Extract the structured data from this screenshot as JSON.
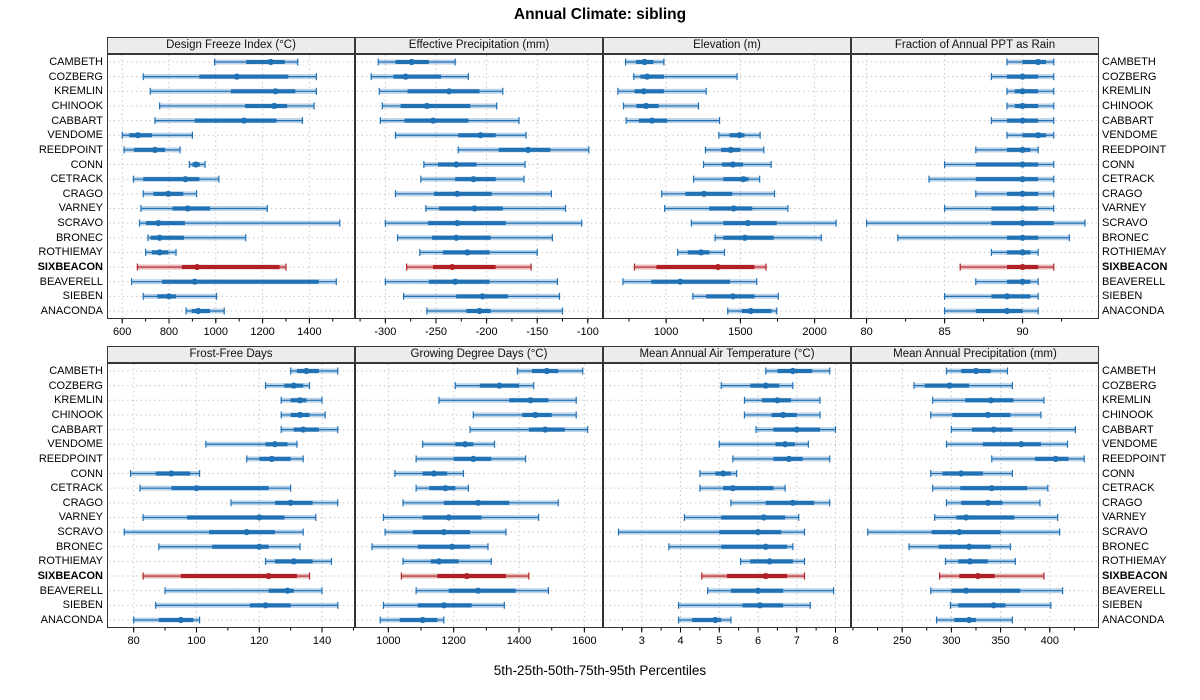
{
  "figure": {
    "title": "Annual Climate: sibling",
    "caption": "5th-25th-50th-75th-95th Percentiles"
  },
  "stations": [
    "CAMBETH",
    "COZBERG",
    "KREMLIN",
    "CHINOOK",
    "CABBART",
    "VENDOME",
    "REEDPOINT",
    "CONN",
    "CETRACK",
    "CRAGO",
    "VARNEY",
    "SCRAVO",
    "BRONEC",
    "ROTHIEMAY",
    "SIXBEACON",
    "BEAVERELL",
    "SIEBEN",
    "ANACONDA"
  ],
  "highlight_station": "SIXBEACON",
  "colors": {
    "series": "#2171b5",
    "highlight": "#b02126",
    "grid": "#c9c9c9",
    "strip_bg": "#ececec",
    "border": "#333333"
  },
  "chart_data": [
    {
      "type": "percentile-dotplot",
      "title": "Design Freeze Index (°C)",
      "percentiles": [
        "5th",
        "25th",
        "50th",
        "75th",
        "95th"
      ],
      "xlim": [
        535,
        1595
      ],
      "ticks": [
        600,
        800,
        1000,
        1200,
        1400
      ],
      "minor_step": 100,
      "values": {
        "CAMBETH": [
          995,
          1130,
          1235,
          1295,
          1350
        ],
        "COZBERG": [
          690,
          930,
          1090,
          1310,
          1430
        ],
        "KREMLIN": [
          720,
          1065,
          1255,
          1340,
          1430
        ],
        "CHINOOK": [
          760,
          1125,
          1250,
          1305,
          1420
        ],
        "CABBART": [
          740,
          910,
          1120,
          1260,
          1370
        ],
        "VENDOME": [
          600,
          630,
          667,
          727,
          900
        ],
        "REEDPOINT": [
          608,
          650,
          740,
          783,
          847
        ],
        "CONN": [
          887,
          900,
          915,
          932,
          954
        ],
        "CETRACK": [
          648,
          690,
          870,
          930,
          1013
        ],
        "CRAGO": [
          690,
          733,
          797,
          861,
          918
        ],
        "VARNEY": [
          680,
          815,
          880,
          975,
          1220
        ],
        "SCRAVO": [
          674,
          702,
          755,
          868,
          1530
        ],
        "BRONEC": [
          710,
          722,
          760,
          864,
          1128
        ],
        "ROTHIEMAY": [
          700,
          727,
          760,
          797,
          830
        ],
        "SIXBEACON": [
          665,
          855,
          920,
          1273,
          1300
        ],
        "BEAVERELL": [
          640,
          770,
          910,
          1440,
          1515
        ],
        "SIEBEN": [
          690,
          750,
          800,
          830,
          1003
        ],
        "ANACONDA": [
          873,
          897,
          925,
          975,
          1036
        ]
      }
    },
    {
      "type": "percentile-dotplot",
      "title": "Effective Precipitation (mm)",
      "percentiles": [
        "5th",
        "25th",
        "50th",
        "75th",
        "95th"
      ],
      "xlim": [
        -330,
        -85
      ],
      "ticks": [
        -300,
        -250,
        -200,
        -150,
        -100
      ],
      "minor_step": 25,
      "values": {
        "CAMBETH": [
          -307,
          -290,
          -274,
          -257,
          -231
        ],
        "COZBERG": [
          -314,
          -292,
          -280,
          -245,
          -218
        ],
        "KREMLIN": [
          -306,
          -278,
          -237,
          -207,
          -184
        ],
        "CHINOOK": [
          -303,
          -285,
          -259,
          -216,
          -190
        ],
        "CABBART": [
          -305,
          -281,
          -253,
          -218,
          -168
        ],
        "VENDOME": [
          -290,
          -228,
          -206,
          -191,
          -161
        ],
        "REEDPOINT": [
          -228,
          -188,
          -159,
          -137,
          -99
        ],
        "CONN": [
          -262,
          -248,
          -230,
          -210,
          -162
        ],
        "CETRACK": [
          -265,
          -231,
          -213,
          -191,
          -163
        ],
        "CRAGO": [
          -290,
          -252,
          -229,
          -195,
          -136
        ],
        "VARNEY": [
          -260,
          -247,
          -212,
          -184,
          -122
        ],
        "SCRAVO": [
          -300,
          -258,
          -229,
          -181,
          -106
        ],
        "BRONEC": [
          -288,
          -254,
          -230,
          -196,
          -135
        ],
        "ROTHIEMAY": [
          -266,
          -243,
          -219,
          -197,
          -150
        ],
        "SIXBEACON": [
          -279,
          -253,
          -234,
          -191,
          -156
        ],
        "BEAVERELL": [
          -300,
          -257,
          -231,
          -197,
          -130
        ],
        "SIEBEN": [
          -282,
          -230,
          -204,
          -179,
          -128
        ],
        "ANACONDA": [
          -259,
          -220,
          -207,
          -196,
          -125
        ]
      }
    },
    {
      "type": "percentile-dotplot",
      "title": "Elevation (m)",
      "percentiles": [
        "5th",
        "25th",
        "50th",
        "75th",
        "95th"
      ],
      "xlim": [
        575,
        2245
      ],
      "ticks": [
        1000,
        1500,
        2000
      ],
      "minor_step": 250,
      "values": {
        "CAMBETH": [
          727,
          798,
          855,
          915,
          985
        ],
        "COZBERG": [
          782,
          827,
          872,
          985,
          1478
        ],
        "KREMLIN": [
          675,
          787,
          850,
          985,
          1270
        ],
        "CHINOOK": [
          713,
          800,
          865,
          950,
          1218
        ],
        "CABBART": [
          731,
          816,
          906,
          1007,
          1360
        ],
        "VENDOME": [
          1355,
          1427,
          1494,
          1528,
          1633
        ],
        "REEDPOINT": [
          1265,
          1370,
          1435,
          1500,
          1658
        ],
        "CONN": [
          1252,
          1377,
          1450,
          1518,
          1707
        ],
        "CETRACK": [
          1185,
          1385,
          1520,
          1555,
          1630
        ],
        "CRAGO": [
          970,
          1130,
          1255,
          1445,
          1730
        ],
        "VARNEY": [
          990,
          1290,
          1455,
          1580,
          1820
        ],
        "SCRAVO": [
          1170,
          1385,
          1550,
          1745,
          2145
        ],
        "BRONEC": [
          1330,
          1385,
          1530,
          1725,
          2045
        ],
        "ROTHIEMAY": [
          1078,
          1146,
          1236,
          1292,
          1393
        ],
        "SIXBEACON": [
          787,
          935,
          1350,
          1595,
          1673
        ],
        "BEAVERELL": [
          709,
          900,
          1095,
          1430,
          1610
        ],
        "SIEBEN": [
          1180,
          1270,
          1450,
          1595,
          1755
        ],
        "ANACONDA": [
          1415,
          1510,
          1570,
          1710,
          1745
        ]
      }
    },
    {
      "type": "percentile-dotplot",
      "title": "Fraction of Annual PPT as Rain",
      "percentiles": [
        "5th",
        "25th",
        "50th",
        "75th",
        "95th"
      ],
      "xlim": [
        79,
        94.9
      ],
      "ticks": [
        80,
        85,
        90
      ],
      "minor_step": 2.5,
      "values": {
        "CAMBETH": [
          89,
          90,
          91,
          91.5,
          92
        ],
        "COZBERG": [
          88,
          89,
          90,
          91,
          92
        ],
        "KREMLIN": [
          89,
          89.5,
          90,
          91,
          92
        ],
        "CHINOOK": [
          89,
          89.5,
          90,
          91,
          92
        ],
        "CABBART": [
          88,
          89,
          90,
          91,
          92
        ],
        "VENDOME": [
          89,
          90,
          91,
          91.5,
          92
        ],
        "REEDPOINT": [
          87,
          89,
          90,
          90.5,
          91
        ],
        "CONN": [
          85,
          87,
          90,
          91,
          92
        ],
        "CETRACK": [
          84,
          87,
          90,
          91,
          92
        ],
        "CRAGO": [
          87,
          89,
          90,
          91,
          92
        ],
        "VARNEY": [
          85,
          88,
          90,
          91,
          92
        ],
        "SCRAVO": [
          80,
          88,
          90,
          92,
          94
        ],
        "BRONEC": [
          82,
          89,
          90,
          91,
          93
        ],
        "ROTHIEMAY": [
          88,
          89,
          90,
          90.5,
          91
        ],
        "SIXBEACON": [
          86,
          89,
          90,
          91,
          92
        ],
        "BEAVERELL": [
          87,
          89,
          90,
          90.5,
          91
        ],
        "SIEBEN": [
          85,
          88,
          89,
          90.5,
          91
        ],
        "ANACONDA": [
          85,
          87,
          89,
          90,
          91
        ]
      }
    },
    {
      "type": "percentile-dotplot",
      "title": "Frost-Free Days",
      "percentiles": [
        "5th",
        "25th",
        "50th",
        "75th",
        "95th"
      ],
      "xlim": [
        71.5,
        150.5
      ],
      "ticks": [
        80,
        100,
        120,
        140
      ],
      "minor_step": 10,
      "values": {
        "CAMBETH": [
          130,
          132,
          135,
          139,
          145
        ],
        "COZBERG": [
          122,
          128,
          131,
          134,
          136
        ],
        "KREMLIN": [
          127,
          130,
          133,
          135,
          140
        ],
        "CHINOOK": [
          127,
          130,
          133,
          136,
          141
        ],
        "CABBART": [
          127,
          131,
          134,
          139,
          145
        ],
        "VENDOME": [
          103,
          122,
          125,
          129,
          132
        ],
        "REEDPOINT": [
          116,
          120,
          124,
          130,
          134
        ],
        "CONN": [
          79,
          87,
          92,
          98,
          101
        ],
        "CETRACK": [
          82,
          92,
          100,
          123,
          130
        ],
        "CRAGO": [
          111,
          125,
          130,
          137,
          145
        ],
        "VARNEY": [
          83,
          97,
          120,
          128,
          138
        ],
        "SCRAVO": [
          77,
          104,
          116,
          125,
          134
        ],
        "BRONEC": [
          88,
          105,
          120,
          123,
          133
        ],
        "ROTHIEMAY": [
          122,
          125,
          131,
          137,
          143
        ],
        "SIXBEACON": [
          83,
          95,
          123,
          132,
          136
        ],
        "BEAVERELL": [
          90,
          123,
          129,
          131,
          140
        ],
        "SIEBEN": [
          87,
          117,
          122,
          130,
          145
        ],
        "ANACONDA": [
          80,
          88,
          95,
          99,
          101
        ]
      }
    },
    {
      "type": "percentile-dotplot",
      "title": "Growing Degree Days (°C)",
      "percentiles": [
        "5th",
        "25th",
        "50th",
        "75th",
        "95th"
      ],
      "xlim": [
        898,
        1657
      ],
      "ticks": [
        1000,
        1200,
        1400,
        1600
      ],
      "minor_step": 100,
      "values": {
        "CAMBETH": [
          1395,
          1440,
          1485,
          1520,
          1595
        ],
        "COZBERG": [
          1205,
          1280,
          1340,
          1400,
          1445
        ],
        "KREMLIN": [
          1155,
          1370,
          1435,
          1490,
          1575
        ],
        "CHINOOK": [
          1260,
          1410,
          1450,
          1500,
          1575
        ],
        "CABBART": [
          1250,
          1430,
          1480,
          1540,
          1610
        ],
        "VENDOME": [
          1105,
          1205,
          1235,
          1260,
          1325
        ],
        "REEDPOINT": [
          1085,
          1200,
          1260,
          1315,
          1420
        ],
        "CONN": [
          1020,
          1105,
          1140,
          1180,
          1230
        ],
        "CETRACK": [
          1085,
          1125,
          1175,
          1205,
          1245
        ],
        "CRAGO": [
          1045,
          1170,
          1275,
          1370,
          1520
        ],
        "VARNEY": [
          985,
          1105,
          1185,
          1285,
          1460
        ],
        "SCRAVO": [
          990,
          1075,
          1170,
          1250,
          1360
        ],
        "BRONEC": [
          950,
          1090,
          1195,
          1250,
          1305
        ],
        "ROTHIEMAY": [
          1045,
          1130,
          1155,
          1215,
          1315
        ],
        "SIXBEACON": [
          1040,
          1150,
          1240,
          1360,
          1430
        ],
        "BEAVERELL": [
          1085,
          1185,
          1275,
          1390,
          1490
        ],
        "SIEBEN": [
          985,
          1090,
          1170,
          1255,
          1355
        ],
        "ANACONDA": [
          975,
          1035,
          1105,
          1150,
          1170
        ]
      }
    },
    {
      "type": "percentile-dotplot",
      "title": "Mean Annual Air Temperature (°C)",
      "percentiles": [
        "5th",
        "25th",
        "50th",
        "75th",
        "95th"
      ],
      "xlim": [
        2.0,
        8.4
      ],
      "ticks": [
        3,
        4,
        5,
        6,
        7,
        8
      ],
      "minor_step": 0.5,
      "values": {
        "CAMBETH": [
          6.2,
          6.5,
          6.9,
          7.4,
          7.85
        ],
        "COZBERG": [
          5.05,
          5.8,
          6.2,
          6.55,
          6.9
        ],
        "KREMLIN": [
          5.65,
          6.1,
          6.5,
          6.85,
          7.6
        ],
        "CHINOOK": [
          5.65,
          6.35,
          6.65,
          7.0,
          7.6
        ],
        "CABBART": [
          5.95,
          6.4,
          7.0,
          7.6,
          8.0
        ],
        "VENDOME": [
          5.0,
          6.45,
          6.7,
          6.95,
          7.3
        ],
        "REEDPOINT": [
          5.35,
          6.4,
          6.8,
          7.15,
          7.85
        ],
        "CONN": [
          4.5,
          4.9,
          5.1,
          5.3,
          5.45
        ],
        "CETRACK": [
          4.5,
          5.1,
          5.35,
          6.4,
          6.7
        ],
        "CRAGO": [
          5.3,
          6.2,
          6.9,
          7.45,
          7.85
        ],
        "VARNEY": [
          4.1,
          5.05,
          6.15,
          6.7,
          7.05
        ],
        "SCRAVO": [
          2.4,
          5.0,
          6.0,
          6.6,
          7.2
        ],
        "BRONEC": [
          3.7,
          5.05,
          6.2,
          6.75,
          6.9
        ],
        "ROTHIEMAY": [
          5.55,
          5.8,
          6.3,
          6.9,
          7.2
        ],
        "SIXBEACON": [
          4.55,
          5.2,
          6.2,
          6.75,
          7.2
        ],
        "BEAVERELL": [
          4.7,
          5.3,
          6.0,
          6.65,
          7.95
        ],
        "SIEBEN": [
          3.95,
          5.6,
          6.05,
          6.65,
          7.35
        ],
        "ANACONDA": [
          3.95,
          4.3,
          4.9,
          5.05,
          5.3
        ]
      }
    },
    {
      "type": "percentile-dotplot",
      "title": "Mean Annual Precipitation (mm)",
      "percentiles": [
        "5th",
        "25th",
        "50th",
        "75th",
        "95th"
      ],
      "xlim": [
        198,
        450
      ],
      "ticks": [
        250,
        300,
        350,
        400
      ],
      "minor_step": 25,
      "values": {
        "CAMBETH": [
          295,
          310,
          325,
          340,
          357
        ],
        "COZBERG": [
          262,
          273,
          298,
          318,
          362
        ],
        "KREMLIN": [
          281,
          314,
          340,
          363,
          394
        ],
        "CHINOOK": [
          279,
          301,
          337,
          360,
          391
        ],
        "CABBART": [
          300,
          321,
          343,
          362,
          426
        ],
        "VENDOME": [
          295,
          332,
          371,
          391,
          418
        ],
        "REEDPOINT": [
          341,
          385,
          406,
          419,
          435
        ],
        "CONN": [
          279,
          291,
          310,
          332,
          362
        ],
        "CETRACK": [
          281,
          309,
          341,
          377,
          398
        ],
        "CRAGO": [
          295,
          310,
          337,
          352,
          390
        ],
        "VARNEY": [
          283,
          305,
          315,
          364,
          408
        ],
        "SCRAVO": [
          215,
          280,
          308,
          350,
          410
        ],
        "BRONEC": [
          257,
          287,
          318,
          340,
          360
        ],
        "ROTHIEMAY": [
          294,
          307,
          319,
          337,
          365
        ],
        "SIXBEACON": [
          288,
          308,
          327,
          344,
          394
        ],
        "BEAVERELL": [
          279,
          300,
          315,
          370,
          413
        ],
        "SIEBEN": [
          299,
          307,
          343,
          355,
          401
        ],
        "ANACONDA": [
          285,
          303,
          318,
          325,
          362
        ]
      }
    }
  ]
}
